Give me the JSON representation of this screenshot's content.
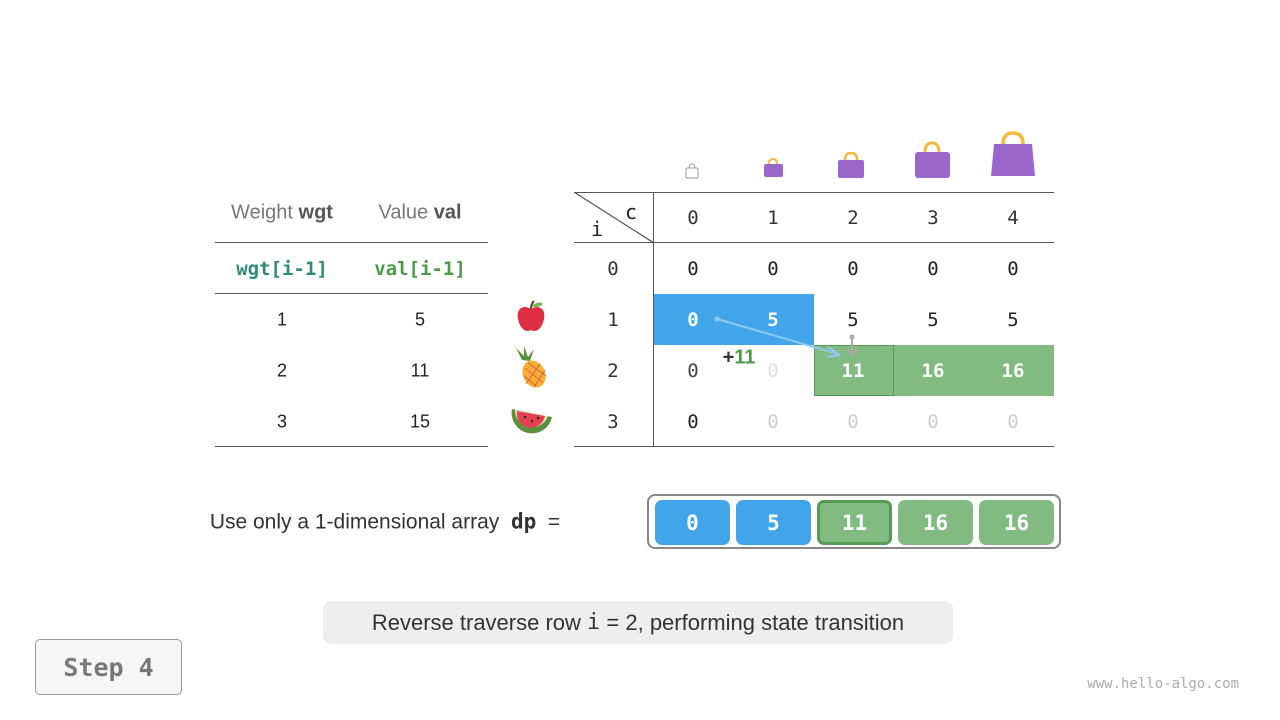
{
  "left_table": {
    "headers": [
      {
        "plain": "Weight ",
        "bold": "wgt"
      },
      {
        "plain": "Value ",
        "bold": "val"
      }
    ],
    "subheaders": [
      "wgt[i-1]",
      "val[i-1]"
    ],
    "rows": [
      [
        "1",
        "5"
      ],
      [
        "2",
        "11"
      ],
      [
        "3",
        "15"
      ]
    ],
    "items": [
      "apple",
      "pineapple",
      "watermelon"
    ]
  },
  "grid": {
    "corner_c": "c",
    "corner_i": "i",
    "col_headers": [
      "0",
      "1",
      "2",
      "3",
      "4"
    ],
    "row_headers": [
      "0",
      "1",
      "2",
      "3"
    ],
    "rows": [
      [
        "0",
        "0",
        "0",
        "0",
        "0"
      ],
      [
        "0",
        "5",
        "5",
        "5",
        "5"
      ],
      [
        "0",
        "0",
        "11",
        "16",
        "16"
      ],
      [
        "0",
        "0",
        "0",
        "0",
        "0"
      ]
    ],
    "annotation": {
      "plus": "+",
      "value": "11"
    }
  },
  "array": {
    "label": "Use only a 1-dimensional array",
    "name": "dp",
    "equals": "=",
    "values": [
      "0",
      "5",
      "11",
      "16",
      "16"
    ]
  },
  "caption": {
    "before": "Reverse traverse row ",
    "code": "i",
    "after": " = 2, performing state transition"
  },
  "step": "Step 4",
  "watermark": "www.hello-algo.com",
  "colors": {
    "blue": "#42a5ea",
    "green": "#82bb82",
    "green_dark": "#549c54",
    "teal": "#2e8b7a",
    "bag": "#9a66cc",
    "handle": "#f5b940"
  }
}
